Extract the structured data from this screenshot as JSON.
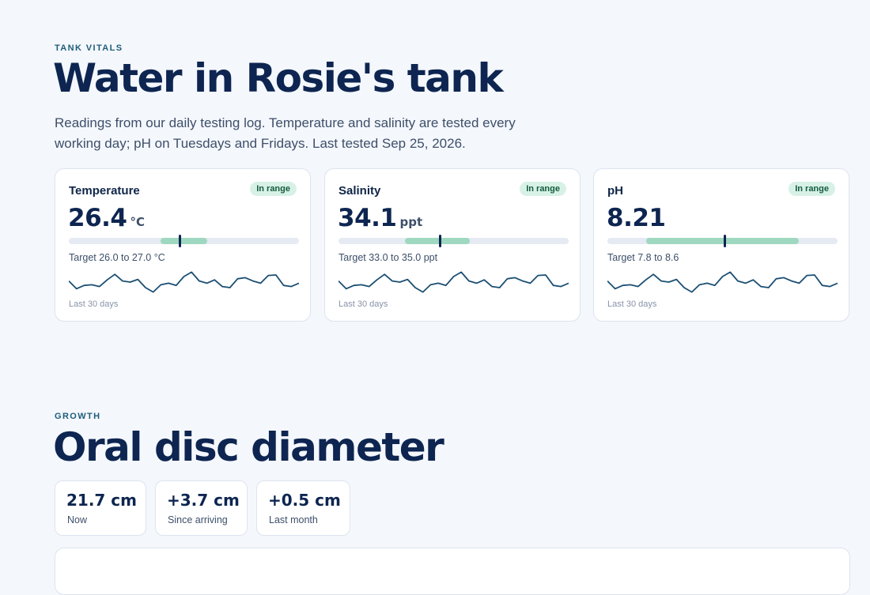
{
  "vitals": {
    "eyebrow": "TANK VITALS",
    "title": "Water in Rosie's tank",
    "description": "Readings from our daily testing log. Temperature and salinity are tested every working day; pH on Tuesdays and Fridays. Last tested Sep 25, 2026.",
    "cards": [
      {
        "name": "Temperature",
        "badge": "In range",
        "value": "26.4",
        "unit": "°C",
        "target": "Target 26.0 to 27.0 °C",
        "period": "Last 30 days",
        "gauge_band": [
          0.4,
          0.6
        ],
        "gauge_marker": 0.48
      },
      {
        "name": "Salinity",
        "badge": "In range",
        "value": "34.1",
        "unit": "ppt",
        "target": "Target 33.0 to 35.0 ppt",
        "period": "Last 30 days",
        "gauge_band": [
          0.29,
          0.57
        ],
        "gauge_marker": 0.44
      },
      {
        "name": "pH",
        "badge": "In range",
        "value": "8.21",
        "unit": "",
        "target": "Target 7.8 to 8.6",
        "period": "Last 30 days",
        "gauge_band": [
          0.17,
          0.83
        ],
        "gauge_marker": 0.51
      }
    ],
    "trend_shape": [
      0.55,
      0.2,
      0.35,
      0.38,
      0.3,
      0.6,
      0.85,
      0.55,
      0.5,
      0.62,
      0.25,
      0.05,
      0.38,
      0.45,
      0.35,
      0.75,
      0.95,
      0.55,
      0.45,
      0.6,
      0.3,
      0.25,
      0.65,
      0.7,
      0.55,
      0.45,
      0.8,
      0.82,
      0.35,
      0.3,
      0.45
    ]
  },
  "growth": {
    "eyebrow": "GROWTH",
    "title": "Oral disc diameter",
    "stats": [
      {
        "value": "21.7 cm",
        "label": "Now"
      },
      {
        "value": "+3.7 cm",
        "label": "Since arriving"
      },
      {
        "value": "+0.5 cm",
        "label": "Last month"
      }
    ]
  },
  "colors": {
    "background": "#f4f7fc",
    "heading": "#0d2550",
    "accent_band": "#9fd8c0",
    "badge_bg": "#d8f1e6",
    "sparkline": "#1b4f73"
  }
}
